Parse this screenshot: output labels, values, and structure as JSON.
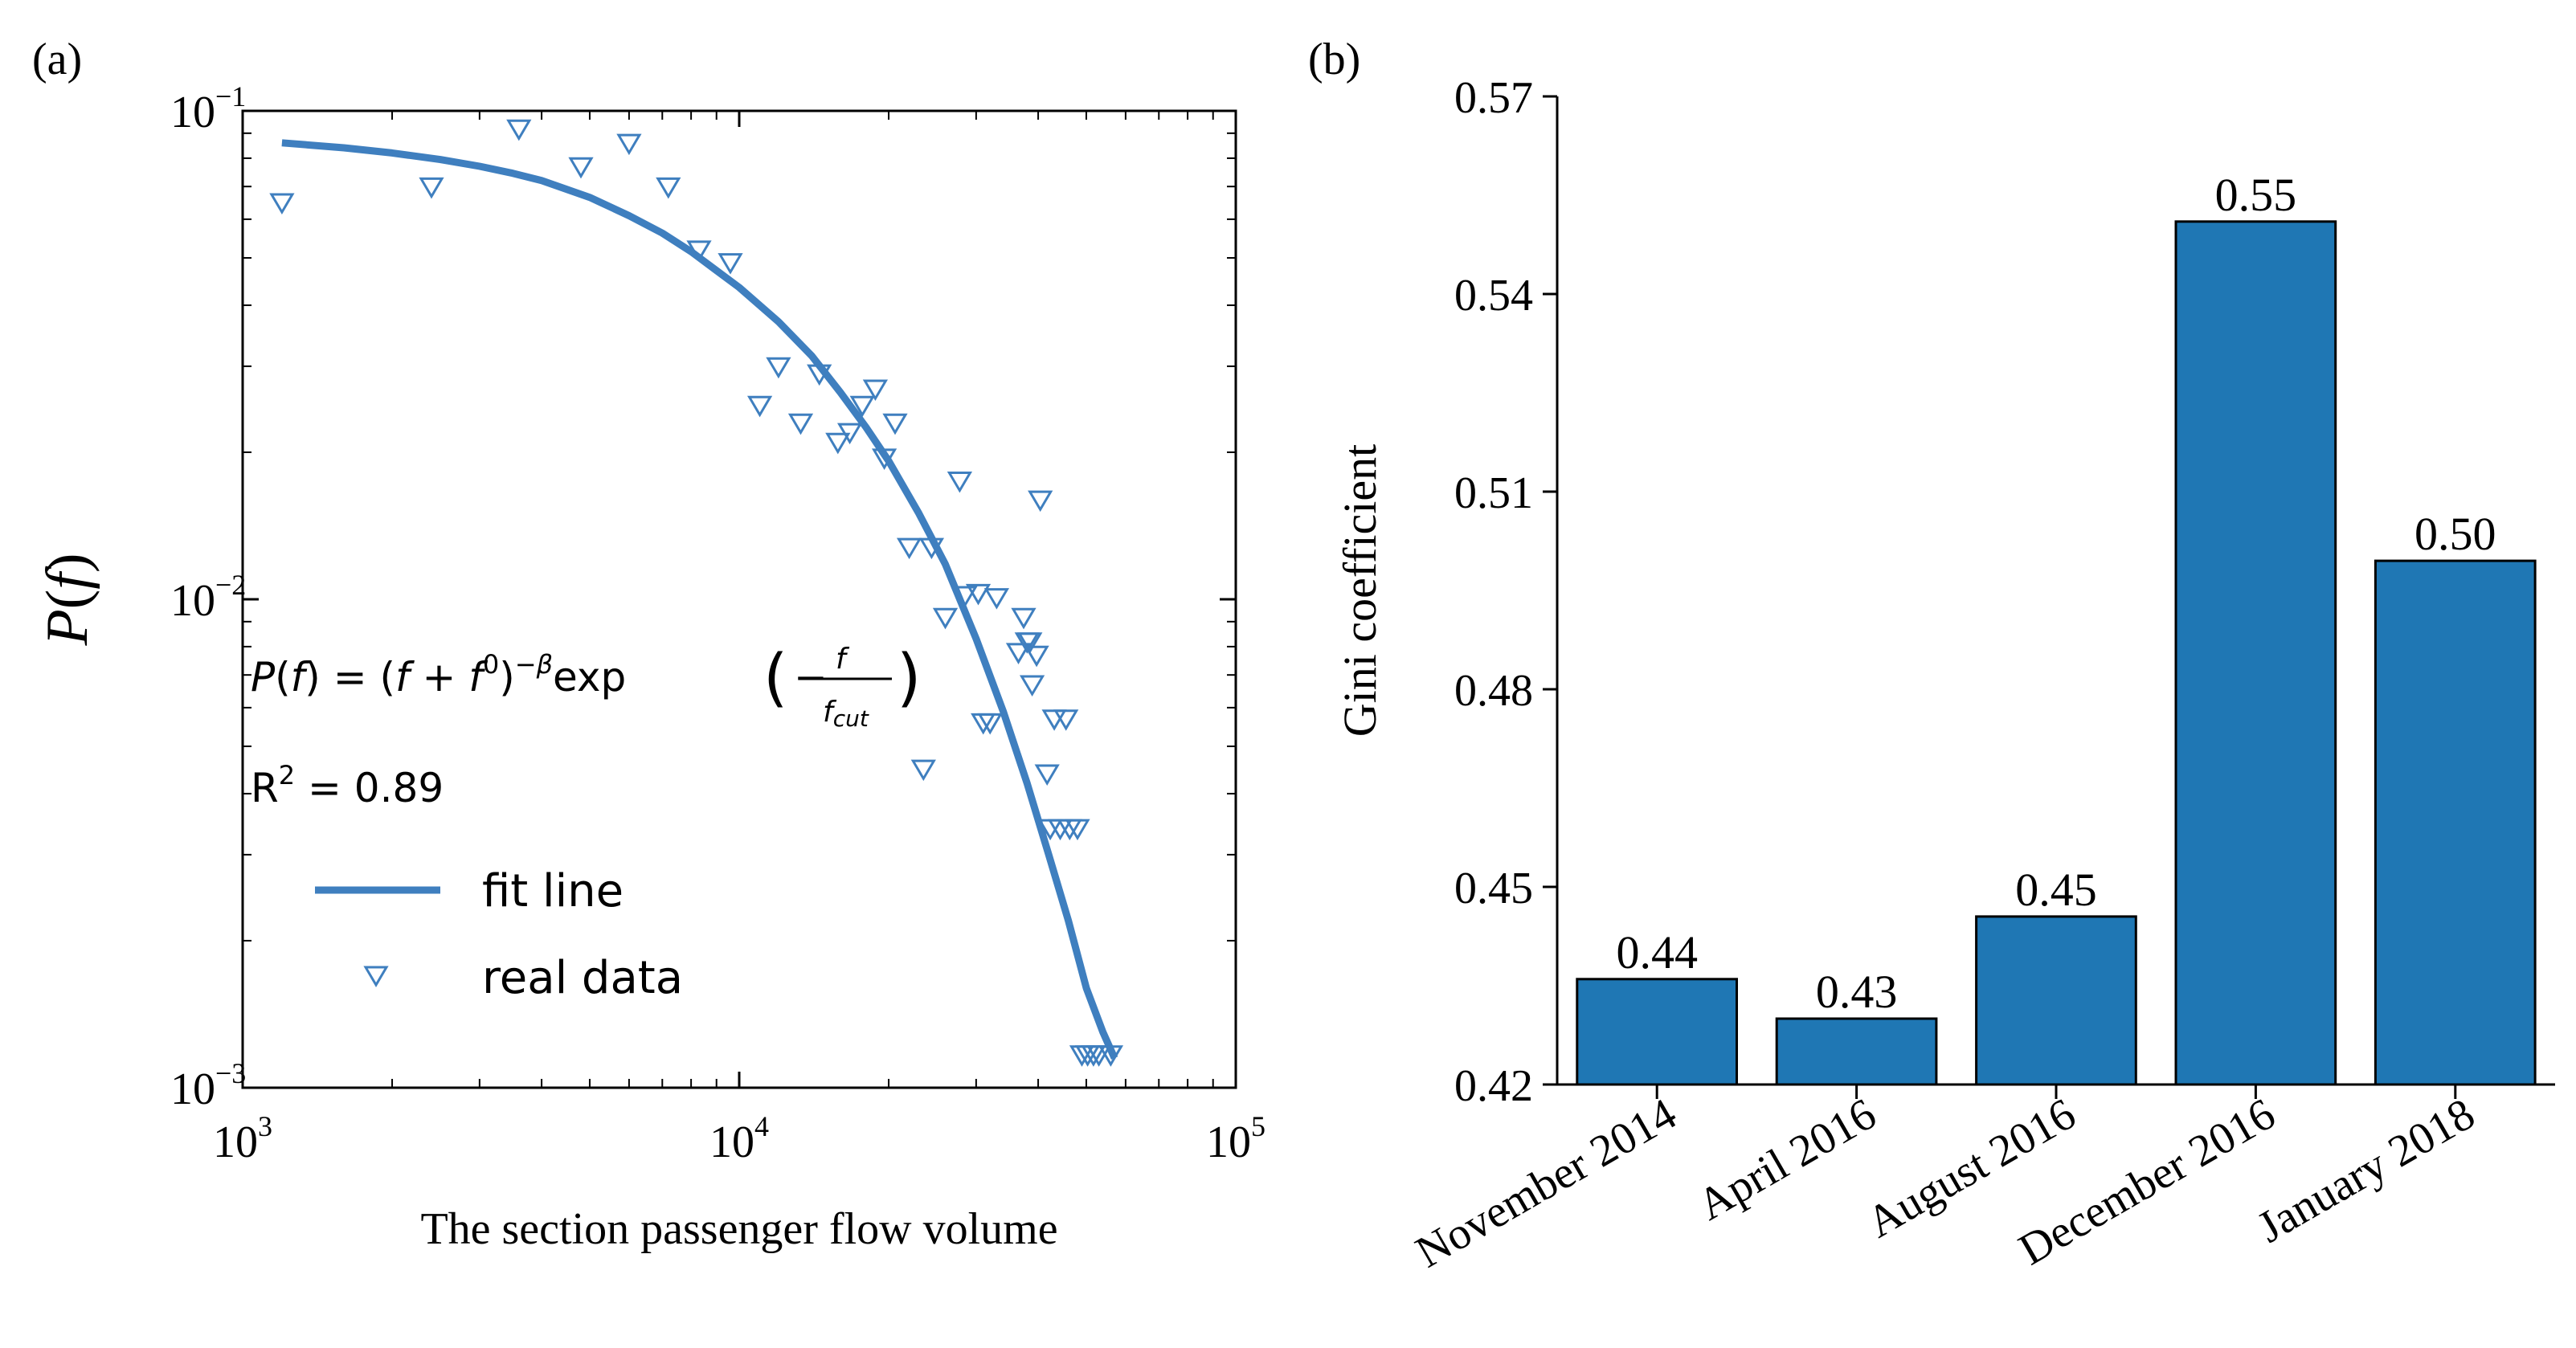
{
  "chart_data": [
    {
      "panel_label": "(a)",
      "type": "scatter",
      "xscale": "log",
      "yscale": "log",
      "xlim": [
        1000,
        100000
      ],
      "ylim": [
        0.001,
        0.1
      ],
      "xlabel": "The section passenger flow volume",
      "ylabel_base": "P",
      "ylabel_var": "f",
      "xticks": [
        {
          "value": 1000,
          "base": "10",
          "exp": "3"
        },
        {
          "value": 10000,
          "base": "10",
          "exp": "4"
        },
        {
          "value": 100000,
          "base": "10",
          "exp": "5"
        }
      ],
      "yticks": [
        {
          "value": 0.001,
          "base": "10",
          "exp": "−3"
        },
        {
          "value": 0.01,
          "base": "10",
          "exp": "−2"
        },
        {
          "value": 0.1,
          "base": "10",
          "exp": "−1"
        }
      ],
      "formula": {
        "lhs_P": "P",
        "lhs_f": "f",
        "eq": "=",
        "f0_base": "f",
        "f0_sup": "0",
        "exp_sup": "−β",
        "exp_word": "exp",
        "minus": "−",
        "frac_num": "f",
        "frac_den": "f",
        "frac_den_sub": "cut"
      },
      "r2": {
        "label": "R",
        "sup": "2",
        "value": "= 0.89"
      },
      "legend": {
        "placement": "lower-left",
        "fit_label": "fit line",
        "data_label": "real data"
      },
      "colors": {
        "fit": "#3f7fbf",
        "data": "#3f7fbf"
      },
      "series": [
        {
          "name": "fit line",
          "kind": "line",
          "x": [
            1200,
            1600,
            2000,
            2500,
            3000,
            3500,
            4000,
            5000,
            6000,
            7000,
            8000,
            10000,
            12000,
            14000,
            16000,
            18000,
            20000,
            23000,
            26000,
            30000,
            34000,
            38000,
            42000,
            46000,
            50000,
            54000,
            57000
          ],
          "y": [
            0.086,
            0.084,
            0.082,
            0.0795,
            0.077,
            0.0745,
            0.072,
            0.0665,
            0.061,
            0.0562,
            0.0515,
            0.0435,
            0.037,
            0.0315,
            0.0265,
            0.0225,
            0.0192,
            0.015,
            0.0118,
            0.0083,
            0.0059,
            0.0042,
            0.003,
            0.0022,
            0.0016,
            0.0013,
            0.00115
          ]
        },
        {
          "name": "real data",
          "kind": "marker",
          "marker": "triangle-down-open",
          "x": [
            1200,
            2400,
            3600,
            4800,
            6000,
            7200,
            8300,
            9600,
            11000,
            12000,
            13300,
            14500,
            15800,
            16700,
            17700,
            18800,
            19600,
            20600,
            22000,
            23500,
            24400,
            26000,
            27800,
            28500,
            30300,
            31000,
            32000,
            33000,
            36500,
            37400,
            38000,
            38500,
            38900,
            39700,
            40400,
            41700,
            42300,
            43100,
            44300,
            45500,
            46300,
            48000,
            49000,
            50300,
            51700,
            53000,
            56000
          ],
          "y": [
            0.065,
            0.07,
            0.092,
            0.077,
            0.086,
            0.07,
            0.052,
            0.049,
            0.025,
            0.03,
            0.023,
            0.029,
            0.021,
            0.022,
            0.025,
            0.027,
            0.0195,
            0.023,
            0.0128,
            0.0045,
            0.0128,
            0.0092,
            0.0175,
            0.0102,
            0.0103,
            0.0056,
            0.0056,
            0.0101,
            0.0078,
            0.0092,
            0.0082,
            0.0082,
            0.0067,
            0.0077,
            0.016,
            0.0044,
            0.0034,
            0.0057,
            0.0034,
            0.0057,
            0.0034,
            0.0034,
            0.00117,
            0.00117,
            0.00117,
            0.00117,
            0.00117
          ]
        }
      ]
    },
    {
      "panel_label": "(b)",
      "type": "bar",
      "categories": [
        "November 2014",
        "April 2016",
        "August 2016",
        "December 2016",
        "January 2018"
      ],
      "values": [
        0.436,
        0.43,
        0.4455,
        0.551,
        0.4995
      ],
      "data_labels": [
        "0.44",
        "0.43",
        "0.45",
        "0.55",
        "0.50"
      ],
      "ylabel": "Gini coefficient",
      "xlabel": "",
      "ylim": [
        0.42,
        0.57
      ],
      "yticks": [
        0.42,
        0.45,
        0.48,
        0.51,
        0.54,
        0.57
      ],
      "ytick_labels": [
        "0.42",
        "0.45",
        "0.48",
        "0.51",
        "0.54",
        "0.57"
      ],
      "color": "#1f77b4"
    }
  ]
}
